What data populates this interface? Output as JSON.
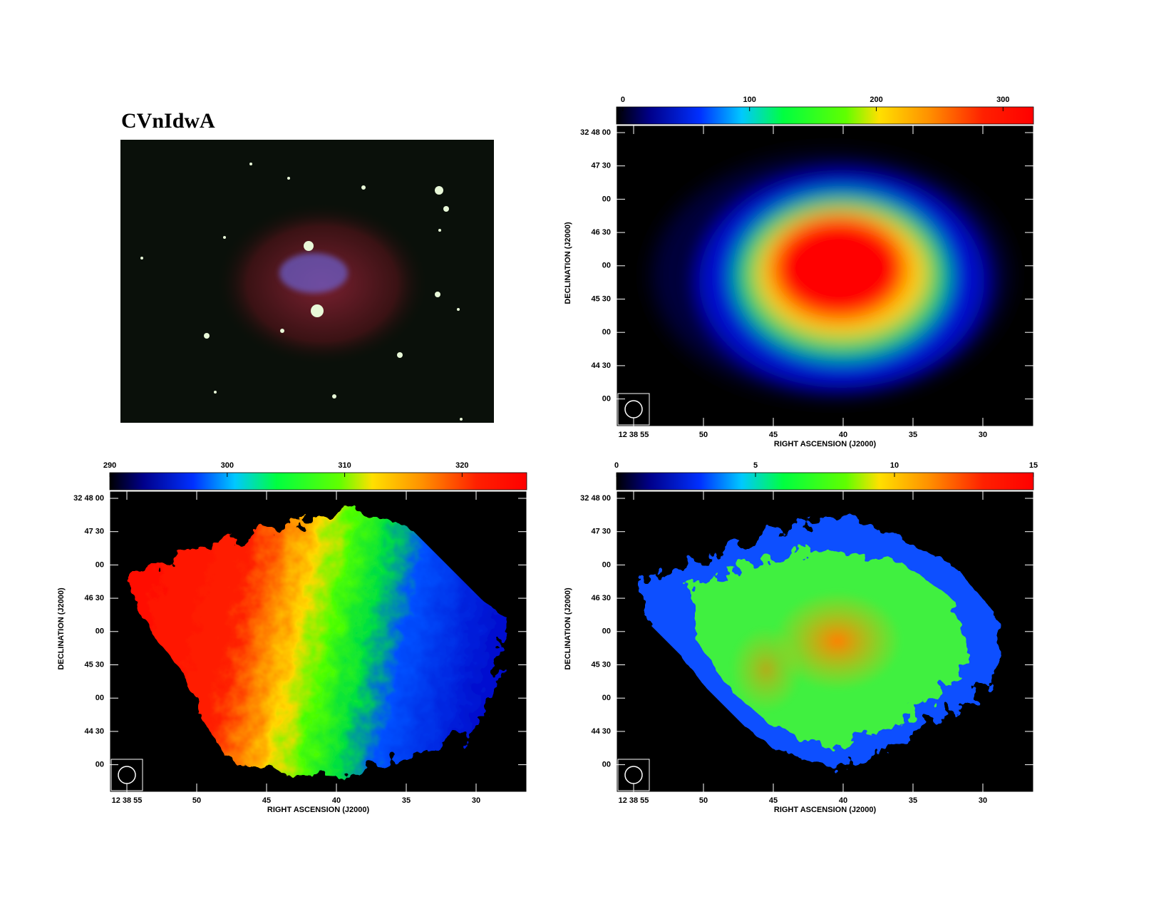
{
  "title": "CVnIdwA",
  "panels": [
    {
      "colorbar": {
        "range": [
          -5,
          324
        ],
        "ticks": [
          0,
          100,
          200,
          300
        ]
      },
      "dec_label": "DECLINATION (J2000)",
      "ra_label": "RIGHT ASCENSION (J2000)",
      "dec_ticks": [
        "32 48 00",
        "47 30",
        "00",
        "46 30",
        "00",
        "45 30",
        "00",
        "44 30",
        "00"
      ],
      "ra_ticks": [
        "12 38 55",
        "50",
        "45",
        "40",
        "35",
        "30"
      ]
    },
    {
      "colorbar": {
        "range": [
          290,
          325.5
        ],
        "ticks": [
          290,
          300,
          310,
          320
        ]
      },
      "dec_label": "DECLINATION (J2000)",
      "ra_label": "RIGHT ASCENSION (J2000)",
      "dec_ticks": [
        "32 48 00",
        "47 30",
        "00",
        "46 30",
        "00",
        "45 30",
        "00",
        "44 30",
        "00"
      ],
      "ra_ticks": [
        "12 38 55",
        "50",
        "45",
        "40",
        "35",
        "30"
      ]
    },
    {
      "colorbar": {
        "range": [
          0,
          15
        ],
        "ticks": [
          0,
          5,
          10,
          15
        ]
      },
      "dec_label": "DECLINATION (J2000)",
      "ra_label": "RIGHT ASCENSION (J2000)",
      "dec_ticks": [
        "32 48 00",
        "47 30",
        "00",
        "46 30",
        "00",
        "45 30",
        "00",
        "44 30",
        "00"
      ],
      "ra_ticks": [
        "12 38 55",
        "50",
        "45",
        "40",
        "35",
        "30"
      ]
    }
  ]
}
